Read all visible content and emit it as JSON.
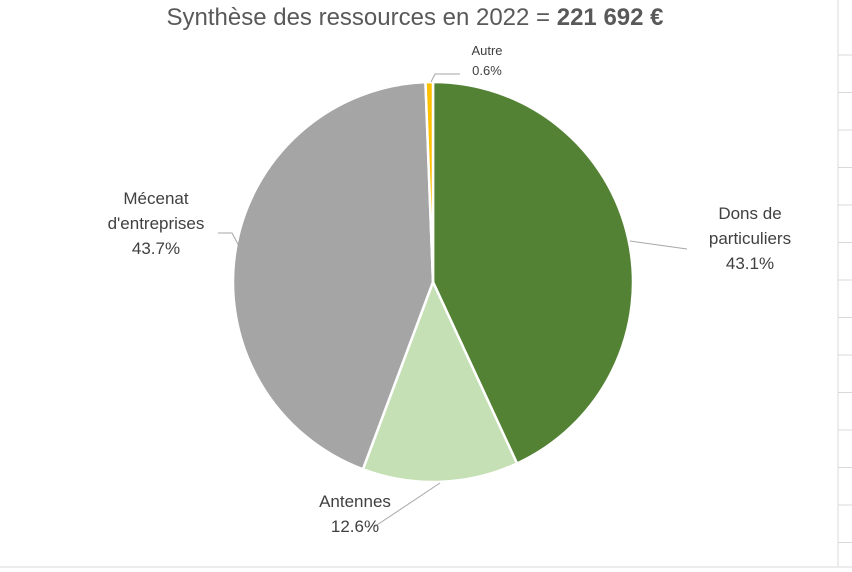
{
  "chart_data": {
    "type": "pie",
    "title": "Synthèse des ressources en 2022 = ",
    "title_amount": "221 692 €",
    "slices": [
      {
        "label": [
          "Dons de",
          "particuliers"
        ],
        "value_label": "43.1%",
        "value": 43.1,
        "color": "#548235"
      },
      {
        "label": [
          "Antennes"
        ],
        "value_label": "12.6%",
        "value": 12.6,
        "color": "#C5E0B4"
      },
      {
        "label": [
          "Mécenat",
          "d'entreprises"
        ],
        "value_label": "43.7%",
        "value": 43.7,
        "color": "#A5A5A5"
      },
      {
        "label": [
          "Autre"
        ],
        "value_label": "0.6%",
        "value": 0.6,
        "color": "#FFC000"
      }
    ]
  }
}
